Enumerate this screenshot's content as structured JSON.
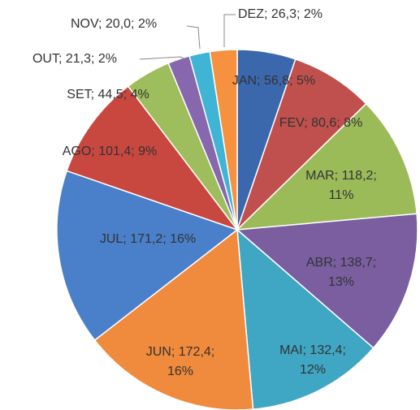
{
  "chart_data": {
    "type": "pie",
    "categories": [
      "JAN",
      "FEV",
      "MAR",
      "ABR",
      "MAI",
      "JUN",
      "JUL",
      "AGO",
      "SET",
      "OUT",
      "NOV",
      "DEZ"
    ],
    "values": [
      56.8,
      80.6,
      118.2,
      138.7,
      132.4,
      172.4,
      171.2,
      101.4,
      44.5,
      21.3,
      20.0,
      26.3
    ],
    "value_labels": [
      "JAN; 56,8; 5%",
      "FEV; 80,6; 8%",
      "MAR; 118,2; 11%",
      "ABR; 138,7; 13%",
      "MAI; 132,4; 12%",
      "JUN; 172,4; 16%",
      "JUL; 171,2; 16%",
      "AGO; 101,4; 9%",
      "SET; 44,5; 4%",
      "OUT; 21,3; 2%",
      "NOV; 20,0; 2%",
      "DEZ; 26,3; 2%"
    ],
    "colors": [
      "#3b67ad",
      "#c0504d",
      "#9bbb59",
      "#7a5ea0",
      "#3fa6c3",
      "#f08a3c",
      "#4a7fc9",
      "#c8473f",
      "#9ebd5c",
      "#8767ae",
      "#3fb4d4",
      "#f6923f"
    ]
  }
}
